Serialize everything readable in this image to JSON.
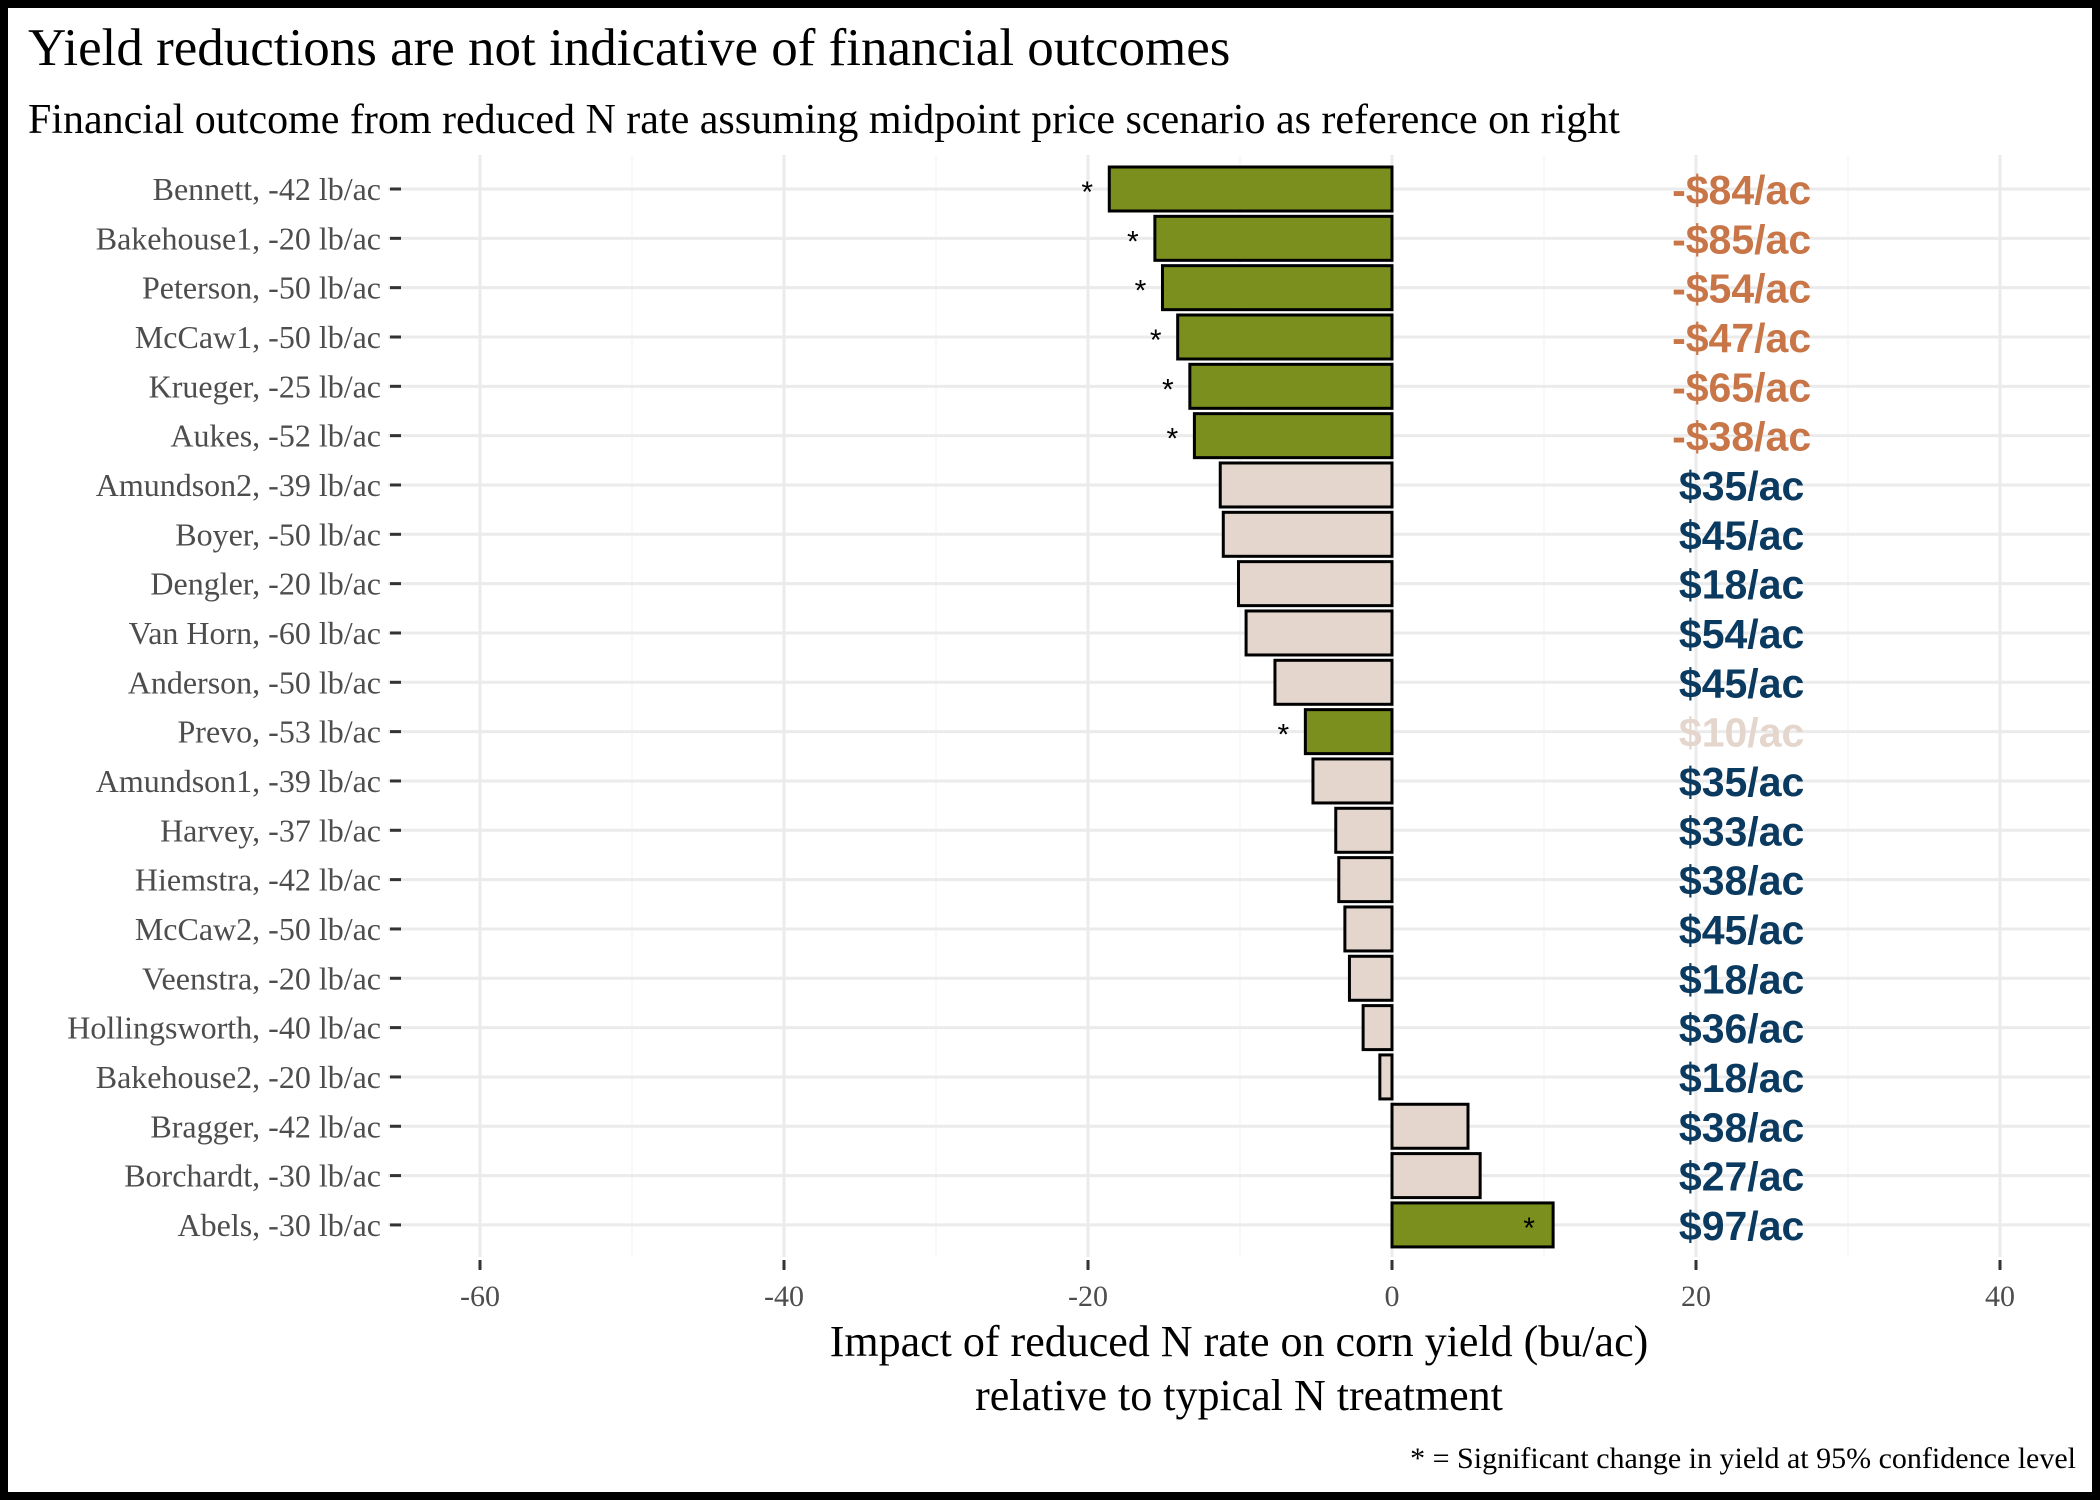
{
  "title": "Yield reductions are not indicative of financial outcomes",
  "subtitle": "Financial outcome from reduced N rate assuming midpoint price scenario as reference on right",
  "caption": "* = Significant change in yield at 95% confidence level",
  "colors": {
    "significant_bar": "#7a8f1e",
    "nonsignificant_bar": "#e4d6cc",
    "bar_outline": "#000000",
    "loss_label": "#c87548",
    "gain_label": "#0b3a60",
    "faint_label": "#e4d6cc",
    "gridline": "#ebebeb"
  },
  "chart_data": {
    "type": "bar",
    "orientation": "horizontal",
    "xlabel_lines": [
      "Impact of reduced N rate on corn yield (bu/ac)",
      "relative to typical N treatment"
    ],
    "xlim": [
      -65,
      45
    ],
    "xticks": [
      -60,
      -40,
      -20,
      0,
      20,
      40
    ],
    "xtick_labels": [
      "-60",
      "-40",
      "-20",
      "0",
      "20",
      "40"
    ],
    "grid": true,
    "financial_label_x": 23,
    "categories": [
      "Bennett, -42 lb/ac",
      "Bakehouse1, -20 lb/ac",
      "Peterson, -50 lb/ac",
      "McCaw1, -50 lb/ac",
      "Krueger, -25 lb/ac",
      "Aukes, -52 lb/ac",
      "Amundson2, -39 lb/ac",
      "Boyer, -50 lb/ac",
      "Dengler, -20 lb/ac",
      "Van Horn, -60 lb/ac",
      "Anderson, -50 lb/ac",
      "Prevo, -53 lb/ac",
      "Amundson1, -39 lb/ac",
      "Harvey, -37 lb/ac",
      "Hiemstra, -42 lb/ac",
      "McCaw2, -50 lb/ac",
      "Veenstra, -20 lb/ac",
      "Hollingsworth, -40 lb/ac",
      "Bakehouse2, -20 lb/ac",
      "Bragger, -42 lb/ac",
      "Borchardt, -30 lb/ac",
      "Abels, -30 lb/ac"
    ],
    "values": [
      -18.6,
      -15.6,
      -15.1,
      -14.1,
      -13.3,
      -13.0,
      -11.3,
      -11.1,
      -10.1,
      -9.6,
      -7.7,
      -5.7,
      -5.2,
      -3.7,
      -3.5,
      -3.1,
      -2.8,
      -1.9,
      -0.8,
      5.0,
      5.8,
      10.6
    ],
    "significant": [
      true,
      true,
      true,
      true,
      true,
      true,
      false,
      false,
      false,
      false,
      false,
      true,
      false,
      false,
      false,
      false,
      false,
      false,
      false,
      false,
      false,
      true
    ],
    "significance_marker": "*",
    "financial_outcomes": [
      "-$84/ac",
      "-$85/ac",
      "-$54/ac",
      "-$47/ac",
      "-$65/ac",
      "-$38/ac",
      "$35/ac",
      "$45/ac",
      "$18/ac",
      "$54/ac",
      "$45/ac",
      "$10/ac",
      "$35/ac",
      "$33/ac",
      "$38/ac",
      "$45/ac",
      "$18/ac",
      "$36/ac",
      "$18/ac",
      "$38/ac",
      "$27/ac",
      "$97/ac"
    ],
    "financial_label_style": [
      "loss",
      "loss",
      "loss",
      "loss",
      "loss",
      "loss",
      "gain",
      "gain",
      "gain",
      "gain",
      "gain",
      "faint",
      "gain",
      "gain",
      "gain",
      "gain",
      "gain",
      "gain",
      "gain",
      "gain",
      "gain",
      "gain"
    ]
  }
}
